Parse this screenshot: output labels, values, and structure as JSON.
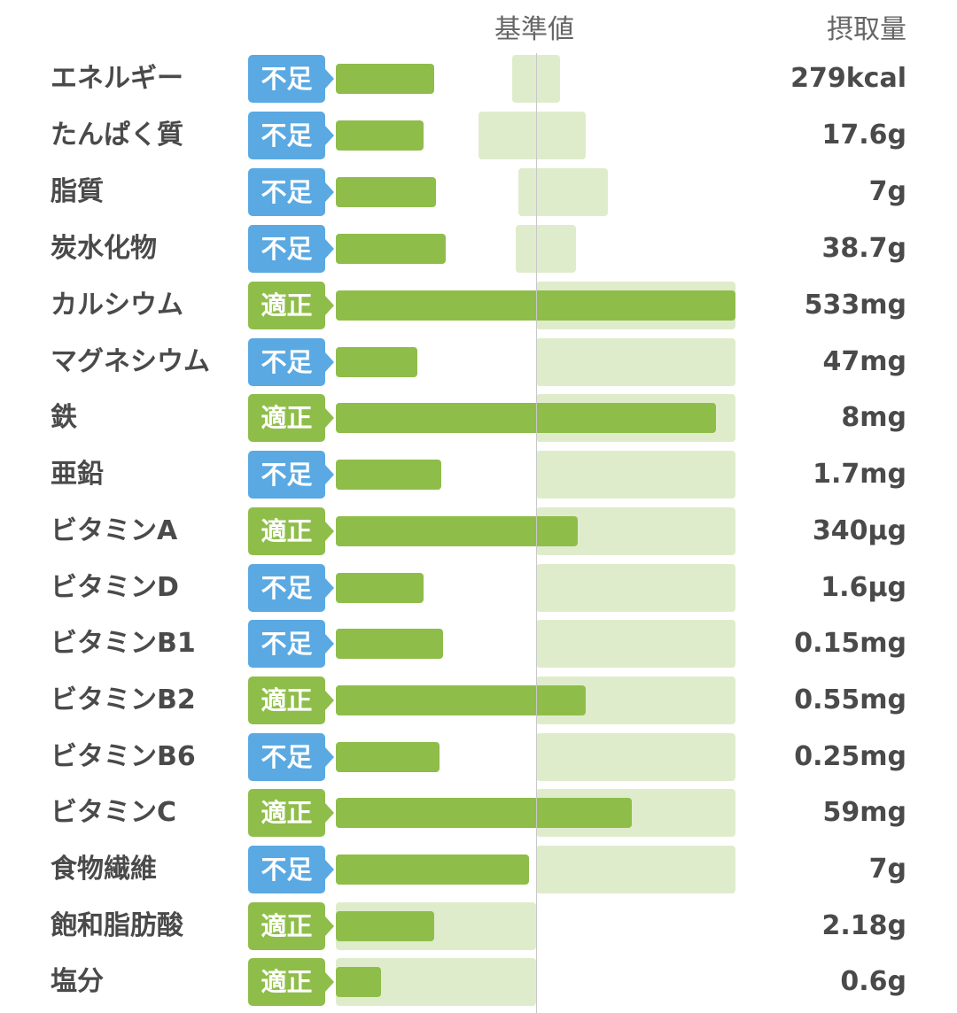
{
  "header": {
    "reference_label": "基準値",
    "intake_label": "摂取量"
  },
  "colors": {
    "deficient_badge": "#5aa9e2",
    "adequate_badge": "#8fbd4a",
    "intake_bar": "#8fbd4a",
    "reference_range": "#dfeccb"
  },
  "nutrients": [
    {
      "name": "エネルギー",
      "status": "不足",
      "status_type": "deficient",
      "intake": "279kcal"
    },
    {
      "name": "たんぱく質",
      "status": "不足",
      "status_type": "deficient",
      "intake": "17.6g"
    },
    {
      "name": "脂質",
      "status": "不足",
      "status_type": "deficient",
      "intake": "7g"
    },
    {
      "name": "炭水化物",
      "status": "不足",
      "status_type": "deficient",
      "intake": "38.7g"
    },
    {
      "name": "カルシウム",
      "status": "適正",
      "status_type": "adequate",
      "intake": "533mg"
    },
    {
      "name": "マグネシウム",
      "status": "不足",
      "status_type": "deficient",
      "intake": "47mg"
    },
    {
      "name": "鉄",
      "status": "適正",
      "status_type": "adequate",
      "intake": "8mg"
    },
    {
      "name": "亜鉛",
      "status": "不足",
      "status_type": "deficient",
      "intake": "1.7mg"
    },
    {
      "name": "ビタミンA",
      "status": "適正",
      "status_type": "adequate",
      "intake": "340µg"
    },
    {
      "name": "ビタミンD",
      "status": "不足",
      "status_type": "deficient",
      "intake": "1.6µg"
    },
    {
      "name": "ビタミンB1",
      "status": "不足",
      "status_type": "deficient",
      "intake": "0.15mg"
    },
    {
      "name": "ビタミンB2",
      "status": "適正",
      "status_type": "adequate",
      "intake": "0.55mg"
    },
    {
      "name": "ビタミンB6",
      "status": "不足",
      "status_type": "deficient",
      "intake": "0.25mg"
    },
    {
      "name": "ビタミンC",
      "status": "適正",
      "status_type": "adequate",
      "intake": "59mg"
    },
    {
      "name": "食物繊維",
      "status": "不足",
      "status_type": "deficient",
      "intake": "7g"
    },
    {
      "name": "飽和脂肪酸",
      "status": "適正",
      "status_type": "adequate",
      "intake": "2.18g"
    },
    {
      "name": "塩分",
      "status": "適正",
      "status_type": "adequate",
      "intake": "0.6g"
    }
  ]
}
